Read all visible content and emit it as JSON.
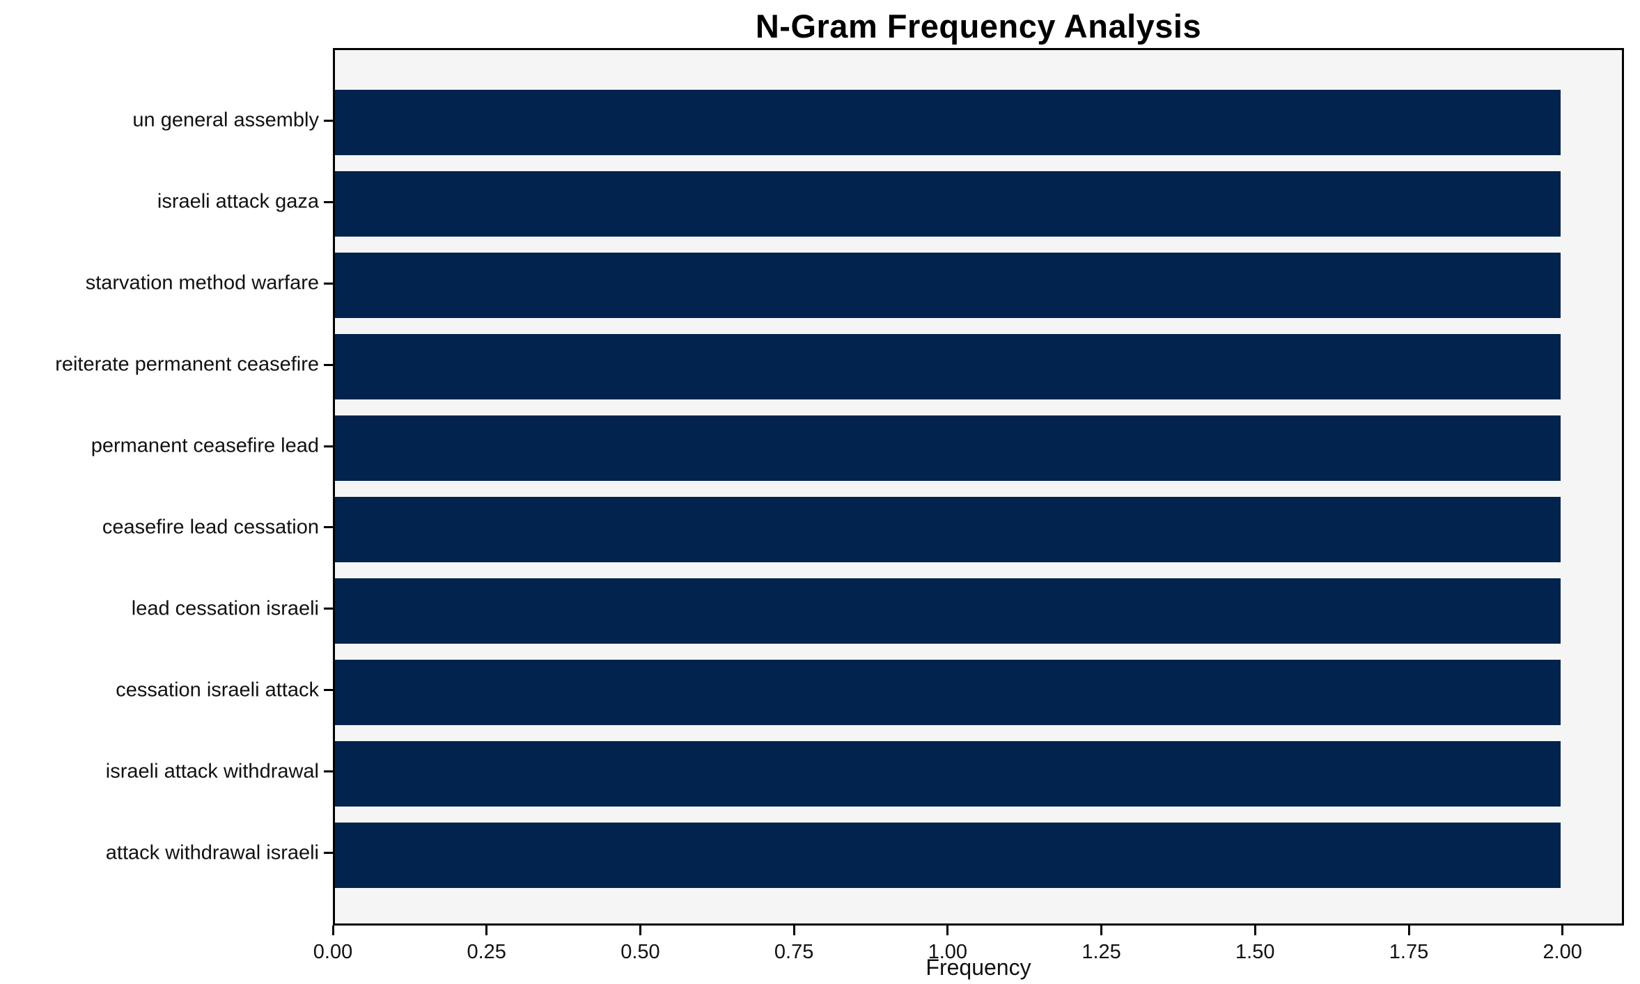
{
  "chart_data": {
    "type": "bar",
    "orientation": "horizontal",
    "title": "N-Gram Frequency Analysis",
    "xlabel": "Frequency",
    "ylabel": "",
    "categories": [
      "un general assembly",
      "israeli attack gaza",
      "starvation method warfare",
      "reiterate permanent ceasefire",
      "permanent ceasefire lead",
      "ceasefire lead cessation",
      "lead cessation israeli",
      "cessation israeli attack",
      "israeli attack withdrawal",
      "attack withdrawal israeli"
    ],
    "values": [
      2,
      2,
      2,
      2,
      2,
      2,
      2,
      2,
      2,
      2
    ],
    "xlim": [
      0,
      2.1
    ],
    "xticks": [
      {
        "value": 0.0,
        "label": "0.00"
      },
      {
        "value": 0.25,
        "label": "0.25"
      },
      {
        "value": 0.5,
        "label": "0.50"
      },
      {
        "value": 0.75,
        "label": "0.75"
      },
      {
        "value": 1.0,
        "label": "1.00"
      },
      {
        "value": 1.25,
        "label": "1.25"
      },
      {
        "value": 1.5,
        "label": "1.50"
      },
      {
        "value": 1.75,
        "label": "1.75"
      },
      {
        "value": 2.0,
        "label": "2.00"
      }
    ],
    "grid": false,
    "legend": null,
    "colors": {
      "bar": "#02234d",
      "plot_background": "#f5f5f5",
      "figure_background": "#ffffff",
      "spine": "#000000",
      "text": "#111111"
    }
  }
}
